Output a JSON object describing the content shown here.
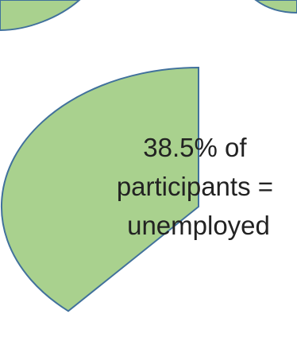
{
  "chart_data": {
    "type": "pie",
    "title": "",
    "slices": [
      {
        "value": 38.5,
        "unit": "%",
        "color": "#a9d18e",
        "label_lines": [
          "38.5% of",
          "participants =",
          "unemployed"
        ]
      }
    ],
    "slice_stroke": "#41719c",
    "label_color": "#222222",
    "legend": "none",
    "grid": false
  }
}
